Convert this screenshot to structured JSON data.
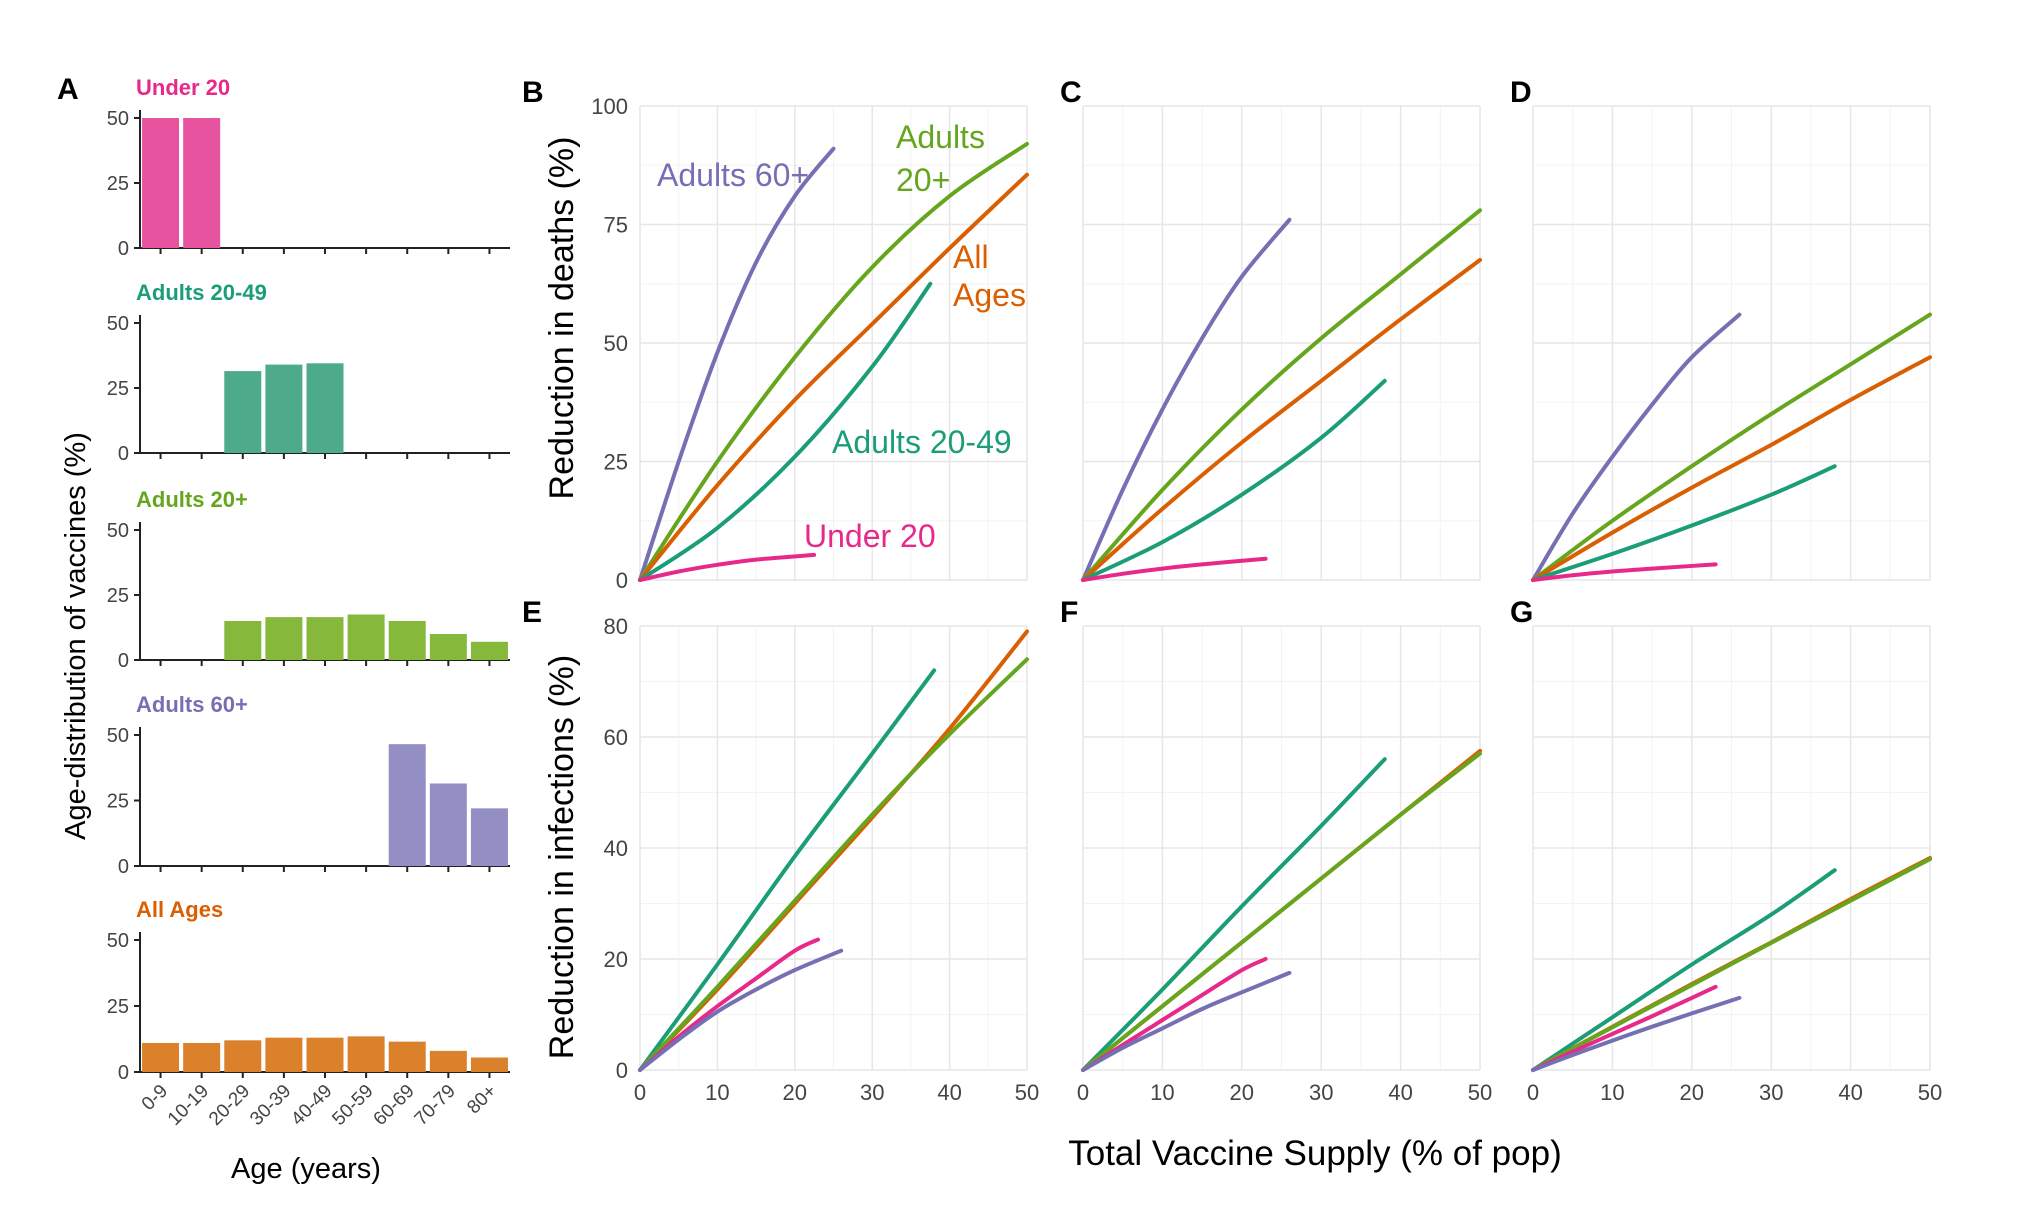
{
  "figure": {
    "panel_a": {
      "letter": "A",
      "ylabel": "Age-distribution of vaccines (%)",
      "xlabel": "Age (years)",
      "age_groups": [
        "0-9",
        "10-19",
        "20-29",
        "30-39",
        "40-49",
        "50-59",
        "60-69",
        "70-79",
        "80+"
      ],
      "yticks": [
        0,
        25,
        50
      ],
      "ylim": [
        0,
        50
      ]
    },
    "shared_xlabel": "Total Vaccine Supply (% of pop)",
    "deaths_ylabel": "Reduction in deaths (%)",
    "infections_ylabel": "Reduction in infections (%)",
    "deaths_yticks": [
      0,
      25,
      50,
      75,
      100
    ],
    "infections_yticks": [
      0,
      20,
      40,
      60,
      80
    ],
    "xticks": [
      0,
      10,
      20,
      30,
      40,
      50
    ],
    "annotations": {
      "adults60": "Adults 60+",
      "adults20_line1": "Adults",
      "adults20_line2": "20+",
      "allages_line1": "All",
      "allages_line2": "Ages",
      "adults2049": "Adults 20-49",
      "under20": "Under 20"
    }
  },
  "colors": {
    "under20": "#e7298a",
    "adults2049": "#1b9e77",
    "adults20plus": "#66a61e",
    "adults60plus": "#7570b3",
    "allages": "#d95f02",
    "under20_bar": "#e7539e",
    "adults2049_bar": "#4daa8a",
    "adults20plus_bar": "#86b83c",
    "adults60plus_bar": "#938fc4",
    "allages_bar": "#db802b",
    "grid_major": "#e6e6e6",
    "grid_minor": "#f3f3f3"
  },
  "chart_data": [
    {
      "panel": "A",
      "type": "bar",
      "categories": [
        "0-9",
        "10-19",
        "20-29",
        "30-39",
        "40-49",
        "50-59",
        "60-69",
        "70-79",
        "80+"
      ],
      "series": [
        {
          "name": "Under 20",
          "values": [
            50,
            50,
            0,
            0,
            0,
            0,
            0,
            0,
            0
          ]
        },
        {
          "name": "Adults 20-49",
          "values": [
            0,
            0,
            31.5,
            34,
            34.5,
            0,
            0,
            0,
            0
          ]
        },
        {
          "name": "Adults 20+",
          "values": [
            0,
            0,
            15,
            16.5,
            16.5,
            17.5,
            15,
            10,
            7
          ]
        },
        {
          "name": "Adults 60+",
          "values": [
            0,
            0,
            0,
            0,
            0,
            0,
            46.5,
            31.5,
            22
          ]
        },
        {
          "name": "All Ages",
          "values": [
            11,
            11,
            12,
            13,
            13,
            13.5,
            11.5,
            8,
            5.5
          ]
        }
      ],
      "xlabel": "Age (years)",
      "ylabel": "Age-distribution of vaccines (%)",
      "ylim": [
        0,
        50
      ]
    },
    {
      "panel": "B",
      "type": "line",
      "xlim": [
        0,
        50
      ],
      "ylim": [
        0,
        100
      ],
      "series": [
        {
          "name": "Adults 60+",
          "x": [
            0,
            5,
            10,
            15,
            20,
            25
          ],
          "y": [
            0,
            25,
            48,
            67,
            81,
            91
          ]
        },
        {
          "name": "Adults 20+",
          "x": [
            0,
            10,
            20,
            30,
            40,
            50
          ],
          "y": [
            0,
            25,
            47,
            66,
            81,
            92
          ]
        },
        {
          "name": "All Ages",
          "x": [
            0,
            10,
            20,
            30,
            40,
            50
          ],
          "y": [
            0,
            20,
            38,
            54,
            70,
            85.5
          ]
        },
        {
          "name": "Adults 20-49",
          "x": [
            0,
            10,
            20,
            30,
            37.5
          ],
          "y": [
            0,
            11,
            26,
            45,
            62.5
          ]
        },
        {
          "name": "Under 20",
          "x": [
            0,
            5,
            10,
            15,
            22.5
          ],
          "y": [
            0,
            1.8,
            3.2,
            4.3,
            5.3
          ]
        }
      ]
    },
    {
      "panel": "C",
      "type": "line",
      "xlim": [
        0,
        50
      ],
      "ylim": [
        0,
        100
      ],
      "series": [
        {
          "name": "Adults 60+",
          "x": [
            0,
            5,
            10,
            15,
            20,
            26
          ],
          "y": [
            0,
            19,
            36,
            51,
            64,
            76
          ]
        },
        {
          "name": "Adults 20+",
          "x": [
            0,
            10,
            20,
            30,
            40,
            50
          ],
          "y": [
            0,
            19,
            36,
            51,
            64.5,
            78
          ]
        },
        {
          "name": "All Ages",
          "x": [
            0,
            10,
            20,
            30,
            40,
            50
          ],
          "y": [
            0,
            15,
            29,
            42,
            55,
            67.5
          ]
        },
        {
          "name": "Adults 20-49",
          "x": [
            0,
            10,
            20,
            30,
            38
          ],
          "y": [
            0,
            8,
            18,
            30,
            42
          ]
        },
        {
          "name": "Under 20",
          "x": [
            0,
            5,
            10,
            15,
            23
          ],
          "y": [
            0,
            1.3,
            2.4,
            3.3,
            4.5
          ]
        }
      ]
    },
    {
      "panel": "D",
      "type": "line",
      "xlim": [
        0,
        50
      ],
      "ylim": [
        0,
        100
      ],
      "series": [
        {
          "name": "Adults 60+",
          "x": [
            0,
            5,
            10,
            15,
            20,
            26
          ],
          "y": [
            0,
            14,
            26,
            37,
            47,
            56
          ]
        },
        {
          "name": "Adults 20+",
          "x": [
            0,
            10,
            20,
            30,
            40,
            50
          ],
          "y": [
            0,
            12.5,
            24,
            35,
            45.5,
            56
          ]
        },
        {
          "name": "All Ages",
          "x": [
            0,
            10,
            20,
            30,
            40,
            50
          ],
          "y": [
            0,
            10,
            19.5,
            28.5,
            38,
            47
          ]
        },
        {
          "name": "Adults 20-49",
          "x": [
            0,
            10,
            20,
            30,
            38
          ],
          "y": [
            0,
            5.5,
            11.5,
            18,
            24
          ]
        },
        {
          "name": "Under 20",
          "x": [
            0,
            5,
            10,
            15,
            23
          ],
          "y": [
            0,
            1,
            1.8,
            2.4,
            3.3
          ]
        }
      ]
    },
    {
      "panel": "E",
      "type": "line",
      "xlim": [
        0,
        50
      ],
      "ylim": [
        0,
        80
      ],
      "series": [
        {
          "name": "Adults 20-49",
          "x": [
            0,
            10,
            20,
            30,
            38
          ],
          "y": [
            0,
            19,
            38.5,
            57,
            72
          ]
        },
        {
          "name": "All Ages",
          "x": [
            0,
            10,
            20,
            30,
            40,
            50
          ],
          "y": [
            0,
            14.5,
            30,
            45.5,
            61.5,
            79
          ]
        },
        {
          "name": "Adults 20+",
          "x": [
            0,
            10,
            20,
            30,
            40,
            50
          ],
          "y": [
            0,
            15,
            30.5,
            46,
            60.5,
            74
          ]
        },
        {
          "name": "Under 20",
          "x": [
            0,
            5,
            10,
            15,
            20,
            23
          ],
          "y": [
            0,
            6,
            11.5,
            16.5,
            21.5,
            23.5
          ]
        },
        {
          "name": "Adults 60+",
          "x": [
            0,
            5,
            10,
            15,
            20,
            26
          ],
          "y": [
            0,
            5.5,
            10.5,
            14.5,
            18,
            21.5
          ]
        }
      ]
    },
    {
      "panel": "F",
      "type": "line",
      "xlim": [
        0,
        50
      ],
      "ylim": [
        0,
        80
      ],
      "series": [
        {
          "name": "Adults 20-49",
          "x": [
            0,
            10,
            20,
            30,
            38
          ],
          "y": [
            0,
            14.5,
            29.5,
            44,
            56
          ]
        },
        {
          "name": "All Ages",
          "x": [
            0,
            10,
            20,
            30,
            40,
            50
          ],
          "y": [
            0,
            11.5,
            23,
            34.5,
            46,
            57.5
          ]
        },
        {
          "name": "Adults 20+",
          "x": [
            0,
            10,
            20,
            30,
            40,
            50
          ],
          "y": [
            0,
            11.5,
            23,
            34.5,
            46,
            57
          ]
        },
        {
          "name": "Under 20",
          "x": [
            0,
            5,
            10,
            15,
            20,
            23
          ],
          "y": [
            0,
            4.5,
            9,
            13.5,
            18,
            20
          ]
        },
        {
          "name": "Adults 60+",
          "x": [
            0,
            5,
            10,
            15,
            20,
            26
          ],
          "y": [
            0,
            4,
            7.5,
            11,
            14,
            17.5
          ]
        }
      ]
    },
    {
      "panel": "G",
      "type": "line",
      "xlim": [
        0,
        50
      ],
      "ylim": [
        0,
        80
      ],
      "series": [
        {
          "name": "Adults 20-49",
          "x": [
            0,
            10,
            20,
            30,
            38
          ],
          "y": [
            0,
            9.5,
            19,
            28,
            36
          ]
        },
        {
          "name": "All Ages",
          "x": [
            0,
            10,
            20,
            30,
            40,
            50
          ],
          "y": [
            0,
            7.8,
            15.5,
            23,
            30.8,
            38.2
          ]
        },
        {
          "name": "Adults 20+",
          "x": [
            0,
            10,
            20,
            30,
            40,
            50
          ],
          "y": [
            0,
            7.7,
            15.3,
            22.9,
            30.5,
            38
          ]
        },
        {
          "name": "Under 20",
          "x": [
            0,
            5,
            10,
            15,
            20,
            23
          ],
          "y": [
            0,
            3.3,
            6.5,
            9.7,
            13,
            15
          ]
        },
        {
          "name": "Adults 60+",
          "x": [
            0,
            5,
            10,
            15,
            20,
            26
          ],
          "y": [
            0,
            2.7,
            5.3,
            7.8,
            10.2,
            13
          ]
        }
      ]
    }
  ]
}
